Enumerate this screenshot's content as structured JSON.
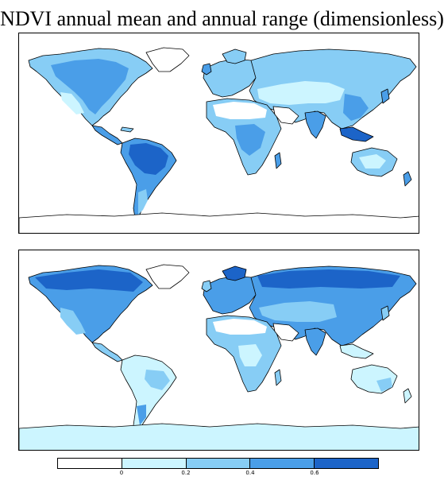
{
  "title": "NDVI annual mean and annual range (dimensionless)",
  "colorbar": {
    "colors": [
      "#ffffff",
      "#ccf5ff",
      "#87cdf5",
      "#4a9ee8",
      "#1c64c8"
    ],
    "tick_labels": [
      "0",
      "0.2",
      "0.4",
      "0.6"
    ]
  },
  "maps": [
    {
      "name": "annual-mean",
      "ocean_color": "#ffffff",
      "land_base_color": "#ccf5ff",
      "coast_color": "#000000"
    },
    {
      "name": "annual-range",
      "ocean_color": "#ffffff",
      "land_base_color": "#ccf5ff",
      "coast_color": "#000000"
    }
  ]
}
